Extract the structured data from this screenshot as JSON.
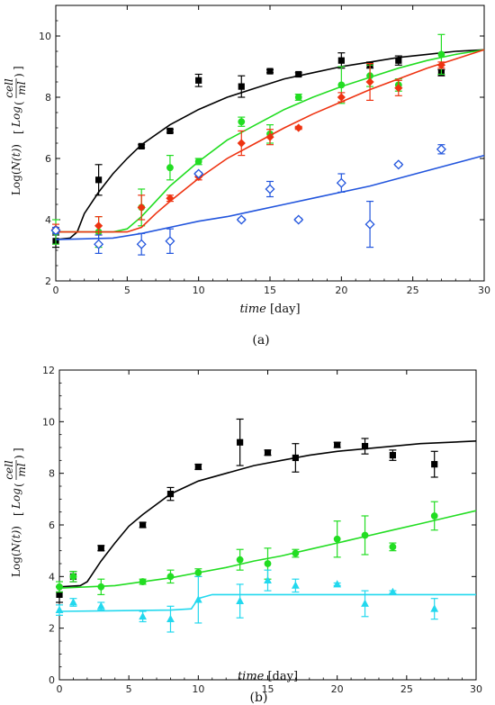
{
  "chart_data": [
    {
      "type": "scatter",
      "panel_label": "(a)",
      "xlabel_main": "time",
      "xlabel_unit": "[day]",
      "ylabel_prefix": "Log(",
      "ylabel_var": "N(t)",
      "ylabel_suffix": ")",
      "ylabel_log": "Log",
      "ylabel_num": "cell",
      "ylabel_den": "ml",
      "xlim": [
        0,
        30
      ],
      "ylim": [
        2,
        11
      ],
      "xticks": [
        0,
        5,
        10,
        15,
        20,
        25,
        30
      ],
      "yticks": [
        2,
        4,
        6,
        8,
        10
      ],
      "grid": false,
      "series": [
        {
          "color": "#000000",
          "marker": "square",
          "points": [
            [
              0,
              3.3,
              0.2
            ],
            [
              3,
              5.3,
              0.5
            ],
            [
              6,
              6.4,
              0.05
            ],
            [
              8,
              6.9,
              0.05
            ],
            [
              10,
              8.55,
              0.2
            ],
            [
              13,
              8.35,
              0.35
            ],
            [
              15,
              8.85,
              0.05
            ],
            [
              17,
              8.75,
              0.05
            ],
            [
              20,
              9.2,
              0.25
            ],
            [
              22,
              9.05,
              0.1
            ],
            [
              24,
              9.2,
              0.15
            ],
            [
              27,
              8.8,
              0.1
            ]
          ],
          "curve": [
            [
              0,
              3.35
            ],
            [
              1,
              3.4
            ],
            [
              1.5,
              3.6
            ],
            [
              2,
              4.2
            ],
            [
              3,
              4.9
            ],
            [
              4,
              5.5
            ],
            [
              5,
              6.0
            ],
            [
              6,
              6.45
            ],
            [
              8,
              7.1
            ],
            [
              10,
              7.6
            ],
            [
              12,
              8.0
            ],
            [
              14,
              8.3
            ],
            [
              16,
              8.6
            ],
            [
              18,
              8.8
            ],
            [
              20,
              9.0
            ],
            [
              22,
              9.15
            ],
            [
              24,
              9.3
            ],
            [
              26,
              9.4
            ],
            [
              28,
              9.5
            ],
            [
              30,
              9.55
            ]
          ]
        },
        {
          "color": "#22dd22",
          "marker": "circle",
          "points": [
            [
              0,
              3.6,
              0.4
            ],
            [
              3,
              3.6,
              0.5
            ],
            [
              6,
              4.4,
              0.6
            ],
            [
              8,
              5.7,
              0.4
            ],
            [
              10,
              5.9,
              0.1
            ],
            [
              13,
              7.2,
              0.15
            ],
            [
              15,
              6.8,
              0.3
            ],
            [
              17,
              8.0,
              0.1
            ],
            [
              20,
              8.4,
              0.6
            ],
            [
              22,
              8.7,
              0.35
            ],
            [
              24,
              8.4,
              0.2
            ],
            [
              27,
              9.4,
              0.65
            ]
          ],
          "curve": [
            [
              0,
              3.6
            ],
            [
              4,
              3.6
            ],
            [
              5,
              3.7
            ],
            [
              6,
              4.1
            ],
            [
              7,
              4.6
            ],
            [
              8,
              5.1
            ],
            [
              10,
              5.9
            ],
            [
              12,
              6.6
            ],
            [
              14,
              7.1
            ],
            [
              16,
              7.6
            ],
            [
              18,
              8.0
            ],
            [
              20,
              8.35
            ],
            [
              22,
              8.65
            ],
            [
              24,
              8.95
            ],
            [
              26,
              9.2
            ],
            [
              28,
              9.4
            ],
            [
              30,
              9.55
            ]
          ]
        },
        {
          "color": "#ee3311",
          "marker": "diamond",
          "points": [
            [
              0,
              3.7,
              0.15
            ],
            [
              3,
              3.8,
              0.3
            ],
            [
              6,
              4.4,
              0.4
            ],
            [
              8,
              4.7,
              0.1
            ],
            [
              10,
              5.4,
              0.1
            ],
            [
              13,
              6.5,
              0.4
            ],
            [
              15,
              6.7,
              0.25
            ],
            [
              17,
              7.0,
              0.05
            ],
            [
              20,
              8.0,
              0.15
            ],
            [
              22,
              8.5,
              0.6
            ],
            [
              24,
              8.3,
              0.25
            ],
            [
              27,
              9.05,
              0.1
            ]
          ],
          "curve": [
            [
              0,
              3.6
            ],
            [
              5,
              3.6
            ],
            [
              6,
              3.75
            ],
            [
              7,
              4.2
            ],
            [
              8,
              4.6
            ],
            [
              10,
              5.35
            ],
            [
              12,
              6.0
            ],
            [
              14,
              6.5
            ],
            [
              16,
              7.0
            ],
            [
              18,
              7.45
            ],
            [
              20,
              7.85
            ],
            [
              22,
              8.25
            ],
            [
              24,
              8.6
            ],
            [
              26,
              8.95
            ],
            [
              28,
              9.25
            ],
            [
              30,
              9.55
            ]
          ]
        },
        {
          "color": "#2255dd",
          "marker": "diamond-open",
          "points": [
            [
              0,
              3.65,
              0.1
            ],
            [
              3,
              3.2,
              0.3
            ],
            [
              6,
              3.2,
              0.35
            ],
            [
              8,
              3.3,
              0.4
            ],
            [
              10,
              5.5,
              0.05
            ],
            [
              13,
              4.0,
              0.05
            ],
            [
              15,
              5.0,
              0.25
            ],
            [
              17,
              4.0,
              0.05
            ],
            [
              20,
              5.2,
              0.3
            ],
            [
              22,
              3.85,
              0.75
            ],
            [
              24,
              5.8,
              0.05
            ],
            [
              27,
              6.3,
              0.15
            ]
          ],
          "curve": [
            [
              0,
              3.35
            ],
            [
              4,
              3.4
            ],
            [
              6,
              3.55
            ],
            [
              8,
              3.75
            ],
            [
              10,
              3.95
            ],
            [
              12,
              4.1
            ],
            [
              14,
              4.3
            ],
            [
              16,
              4.5
            ],
            [
              18,
              4.7
            ],
            [
              20,
              4.9
            ],
            [
              22,
              5.1
            ],
            [
              24,
              5.35
            ],
            [
              26,
              5.6
            ],
            [
              28,
              5.85
            ],
            [
              30,
              6.1
            ]
          ]
        }
      ]
    },
    {
      "type": "scatter",
      "panel_label": "(b)",
      "xlabel_main": "time",
      "xlabel_unit": "[day]",
      "ylabel_prefix": "Log(",
      "ylabel_var": "N(t)",
      "ylabel_suffix": ")",
      "ylabel_log": "Log",
      "ylabel_num": "cell",
      "ylabel_den": "ml",
      "xlim": [
        0,
        30
      ],
      "ylim": [
        0,
        12
      ],
      "xticks": [
        0,
        5,
        10,
        15,
        20,
        25,
        30
      ],
      "yticks": [
        0,
        2,
        4,
        6,
        8,
        10,
        12
      ],
      "grid": false,
      "series": [
        {
          "color": "#000000",
          "marker": "square",
          "points": [
            [
              0,
              3.3,
              0.3
            ],
            [
              1,
              4.0,
              0.2
            ],
            [
              3,
              5.1,
              0.1
            ],
            [
              6,
              6.0,
              0.1
            ],
            [
              8,
              7.2,
              0.25
            ],
            [
              10,
              8.25,
              0.1
            ],
            [
              13,
              9.2,
              0.9
            ],
            [
              15,
              8.8,
              0.1
            ],
            [
              17,
              8.6,
              0.55
            ],
            [
              20,
              9.1,
              0.1
            ],
            [
              22,
              9.05,
              0.3
            ],
            [
              24,
              8.7,
              0.2
            ],
            [
              27,
              8.35,
              0.5
            ]
          ],
          "curve": [
            [
              0,
              3.6
            ],
            [
              1.5,
              3.65
            ],
            [
              2,
              3.8
            ],
            [
              3,
              4.6
            ],
            [
              4,
              5.3
            ],
            [
              5,
              5.95
            ],
            [
              6,
              6.4
            ],
            [
              8,
              7.2
            ],
            [
              10,
              7.7
            ],
            [
              12,
              8.0
            ],
            [
              14,
              8.3
            ],
            [
              16,
              8.5
            ],
            [
              18,
              8.7
            ],
            [
              20,
              8.85
            ],
            [
              22,
              8.95
            ],
            [
              24,
              9.05
            ],
            [
              26,
              9.15
            ],
            [
              28,
              9.2
            ],
            [
              30,
              9.25
            ]
          ]
        },
        {
          "color": "#22dd22",
          "marker": "circle",
          "points": [
            [
              0,
              3.6,
              0.2
            ],
            [
              1,
              4.0,
              0.2
            ],
            [
              3,
              3.6,
              0.3
            ],
            [
              6,
              3.8,
              0.1
            ],
            [
              8,
              4.0,
              0.25
            ],
            [
              10,
              4.15,
              0.15
            ],
            [
              13,
              4.65,
              0.4
            ],
            [
              15,
              4.5,
              0.6
            ],
            [
              17,
              4.9,
              0.15
            ],
            [
              20,
              5.45,
              0.7
            ],
            [
              22,
              5.6,
              0.75
            ],
            [
              24,
              5.15,
              0.15
            ],
            [
              27,
              6.35,
              0.55
            ]
          ],
          "curve": [
            [
              0,
              3.55
            ],
            [
              4,
              3.65
            ],
            [
              6,
              3.8
            ],
            [
              8,
              3.95
            ],
            [
              10,
              4.15
            ],
            [
              12,
              4.35
            ],
            [
              14,
              4.6
            ],
            [
              16,
              4.8
            ],
            [
              18,
              5.05
            ],
            [
              20,
              5.3
            ],
            [
              22,
              5.55
            ],
            [
              24,
              5.8
            ],
            [
              26,
              6.05
            ],
            [
              28,
              6.3
            ],
            [
              30,
              6.55
            ]
          ]
        },
        {
          "color": "#22d8ee",
          "marker": "triangle",
          "points": [
            [
              0,
              2.7,
              0.2
            ],
            [
              1,
              3.0,
              0.15
            ],
            [
              3,
              2.85,
              0.15
            ],
            [
              6,
              2.45,
              0.2
            ],
            [
              8,
              2.35,
              0.5
            ],
            [
              10,
              3.1,
              0.9
            ],
            [
              13,
              3.05,
              0.65
            ],
            [
              15,
              3.85,
              0.4
            ],
            [
              17,
              3.65,
              0.25
            ],
            [
              20,
              3.7,
              0.05
            ],
            [
              22,
              2.95,
              0.5
            ],
            [
              24,
              3.4,
              0.05
            ],
            [
              27,
              2.75,
              0.4
            ]
          ],
          "curve": [
            [
              0,
              2.65
            ],
            [
              8,
              2.7
            ],
            [
              9.5,
              2.75
            ],
            [
              10,
              3.15
            ],
            [
              11,
              3.3
            ],
            [
              30,
              3.3
            ]
          ]
        }
      ]
    }
  ]
}
